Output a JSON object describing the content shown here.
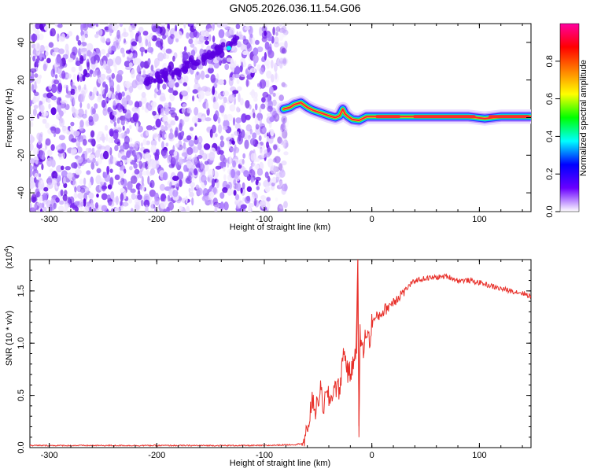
{
  "title": "GN05.2026.036.11.54.G06",
  "chart_data": [
    {
      "type": "heatmap",
      "xlabel": "Height of straight line (km)",
      "ylabel": "Frequency (Hz)",
      "xlim": [
        -318,
        148
      ],
      "ylim": [
        -50,
        50
      ],
      "xticks": [
        -300,
        -200,
        -100,
        0,
        100
      ],
      "yticks": [
        -40,
        -20,
        0,
        20,
        40
      ],
      "colorbar": {
        "label": "Normalized spectral amplitude",
        "range": [
          0,
          1
        ],
        "ticks": [
          0.0,
          0.2,
          0.4,
          0.6,
          0.8
        ],
        "stops": [
          "#ffffff",
          "#6a00ff",
          "#0000ff",
          "#00ffff",
          "#00ff00",
          "#ffff00",
          "#ff8000",
          "#ff0000",
          "#ff00a0"
        ]
      },
      "noise_region_x": [
        -318,
        -82
      ],
      "blob_color": "#7a2cf0",
      "blob_color_dark": "#5a00e0",
      "diagonal_feature": {
        "x": [
          -210,
          -125
        ],
        "y": [
          18,
          40
        ]
      },
      "ridge": {
        "x": [
          -82,
          -76,
          -72,
          -66,
          -60,
          -55,
          -50,
          -45,
          -40,
          -34,
          -30,
          -27,
          -25,
          -22,
          -18,
          -12,
          -5,
          0,
          10,
          30,
          50,
          70,
          90,
          105,
          120,
          148
        ],
        "y": [
          4.5,
          5.5,
          7,
          8,
          5.5,
          4,
          3,
          2,
          1,
          0,
          1,
          4.5,
          2,
          0.5,
          -1,
          -1.5,
          0.5,
          0.5,
          0.5,
          0.5,
          0.5,
          0.5,
          0.5,
          -0.5,
          0.5,
          0.5
        ]
      }
    },
    {
      "type": "line",
      "xlabel": "Height of straight line (km)",
      "ylabel": "SNR (10 * v/v)",
      "y_multiplier": "(x10",
      "y_multiplier_exp": "4",
      "y_multiplier_close": ")",
      "xlim": [
        -318,
        148
      ],
      "ylim": [
        0,
        1.8
      ],
      "xticks": [
        -300,
        -200,
        -100,
        0,
        100
      ],
      "yticks": [
        0.0,
        0.5,
        1.0,
        1.5
      ],
      "color": "#e8302a",
      "x": [
        -318,
        -250,
        -150,
        -100,
        -70,
        -62,
        -58,
        -55,
        -52,
        -48,
        -45,
        -42,
        -38,
        -35,
        -30,
        -26,
        -22,
        -18,
        -15,
        -13,
        -12,
        -11,
        -8,
        -5,
        -2,
        0,
        5,
        10,
        15,
        20,
        25,
        30,
        35,
        40,
        50,
        60,
        70,
        80,
        90,
        100,
        110,
        120,
        130,
        140,
        148
      ],
      "y": [
        0.02,
        0.02,
        0.02,
        0.02,
        0.03,
        0.05,
        0.3,
        0.45,
        0.35,
        0.55,
        0.4,
        0.5,
        0.45,
        0.6,
        0.55,
        0.95,
        0.7,
        0.75,
        0.95,
        1.8,
        0.1,
        1.1,
        0.9,
        1.15,
        1.0,
        1.2,
        1.25,
        1.3,
        1.35,
        1.4,
        1.45,
        1.5,
        1.55,
        1.6,
        1.62,
        1.63,
        1.64,
        1.6,
        1.6,
        1.58,
        1.55,
        1.52,
        1.5,
        1.48,
        1.45
      ]
    }
  ]
}
